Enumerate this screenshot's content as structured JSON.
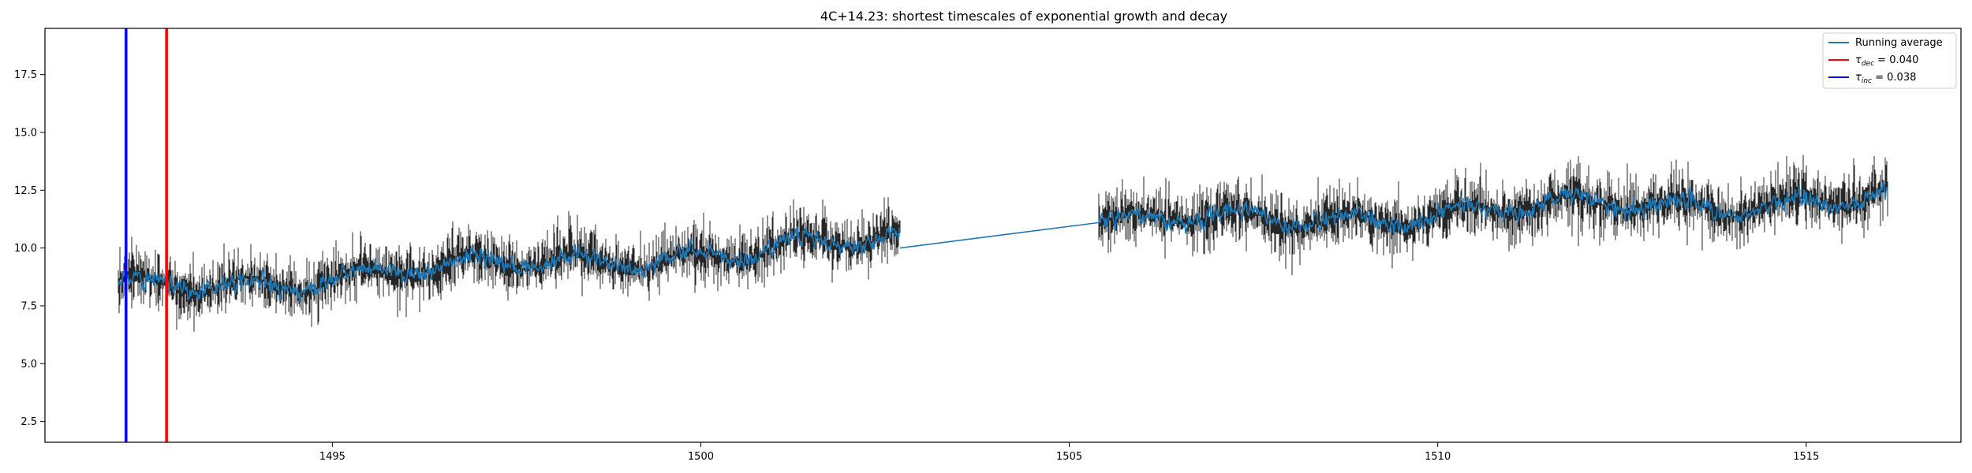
{
  "chart_data": {
    "type": "line",
    "title": "4C+14.23: shortest timescales of exponential growth and decay",
    "xlabel": "",
    "ylabel": "",
    "xlim": [
      1491.1,
      1517.1
    ],
    "ylim": [
      1.6,
      19.5
    ],
    "xticks": [
      1495,
      1500,
      1505,
      1510,
      1515
    ],
    "yticks": [
      2.5,
      5.0,
      7.5,
      10.0,
      12.5,
      15.0,
      17.5
    ],
    "grid": false,
    "legend_position": "top-right",
    "segments": [
      {
        "x_start": 1492.1,
        "x_end": 1502.7,
        "trend_start": 8.2,
        "trend_end": 10.3,
        "scatter": 1.6
      },
      {
        "x_start": 1505.4,
        "x_end": 1516.1,
        "trend_start": 11.0,
        "trend_end": 12.2,
        "scatter": 1.7
      }
    ],
    "series": [
      {
        "name": "Running average",
        "color": "#1f77b4",
        "gap_bridge": {
          "x": [
            1502.7,
            1505.4
          ],
          "y": [
            10.0,
            11.1
          ]
        }
      },
      {
        "name": "$\\tau_{dec}$ = 0.040",
        "color": "#ff0000",
        "vline_x": 1492.75
      },
      {
        "name": "$\\tau_{inc}$ = 0.038",
        "color": "#0000ff",
        "vline_x": 1492.2
      }
    ],
    "legend": [
      {
        "label": "Running average",
        "color": "#1f77b4"
      },
      {
        "symbol": "τ",
        "sub": "dec",
        "value": " = 0.040",
        "color": "#ff0000"
      },
      {
        "symbol": "τ",
        "sub": "inc",
        "value": " = 0.038",
        "color": "#0000ff"
      }
    ],
    "raw_data_color": "#000000"
  }
}
